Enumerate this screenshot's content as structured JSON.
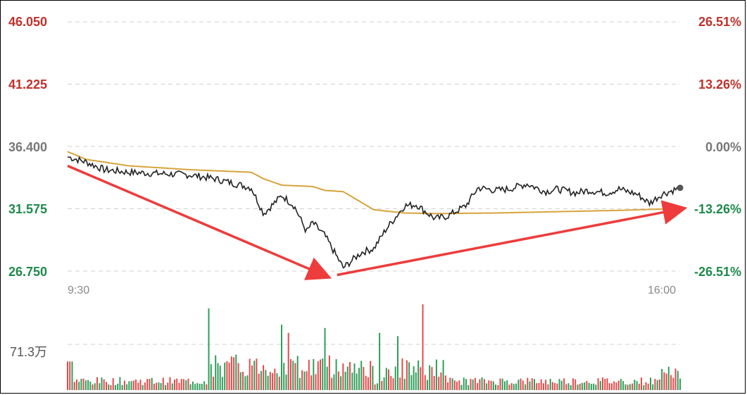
{
  "chart_data": {
    "type": "line",
    "price_axis": {
      "ticks": [
        "46.050",
        "41.225",
        "36.400",
        "31.575",
        "26.750"
      ],
      "values": [
        46.05,
        41.225,
        36.4,
        31.575,
        26.75
      ],
      "ylim": [
        26.75,
        46.05
      ],
      "colors": [
        "#c0312b",
        "#c0312b",
        "#777777",
        "#1f8a4c",
        "#1f8a4c"
      ]
    },
    "pct_axis": {
      "ticks": [
        "26.51%",
        "13.26%",
        "0.00%",
        "-13.26%",
        "-26.51%"
      ],
      "colors": [
        "#c0312b",
        "#c0312b",
        "#777777",
        "#1f8a4c",
        "#1f8a4c"
      ]
    },
    "x_ticks": [
      "9:30",
      "16:00"
    ],
    "volume_axis": {
      "tick": "71.3万"
    },
    "series": [
      {
        "color": "#222222",
        "t": [
          0,
          0.03,
          0.06,
          0.1,
          0.15,
          0.2,
          0.24,
          0.3,
          0.32,
          0.35,
          0.37,
          0.39,
          0.4,
          0.42,
          0.45,
          0.48,
          0.5,
          0.52,
          0.55,
          0.57,
          0.58,
          0.6,
          0.62,
          0.65,
          0.67,
          0.7,
          0.72,
          0.75,
          0.78,
          0.8,
          0.83,
          0.85,
          0.88,
          0.9,
          0.93,
          0.95,
          0.97,
          1.0
        ],
        "price": [
          35.6,
          35.2,
          34.6,
          34.4,
          34.3,
          34.2,
          33.9,
          33.2,
          31.2,
          32.6,
          31.8,
          29.8,
          30.5,
          29.5,
          27.0,
          28.2,
          28.5,
          30.0,
          31.8,
          31.9,
          31.5,
          30.8,
          31.0,
          31.8,
          33.2,
          33.0,
          33.1,
          33.5,
          32.9,
          33.1,
          32.8,
          33.0,
          32.8,
          33.1,
          32.7,
          32.0,
          32.7,
          33.2
        ]
      },
      {
        "color": "#d7a33b",
        "t": [
          0,
          0.03,
          0.1,
          0.2,
          0.3,
          0.32,
          0.35,
          0.4,
          0.42,
          0.45,
          0.5,
          0.55,
          0.6,
          0.7,
          0.8,
          0.9,
          1.0
        ],
        "price": [
          36.0,
          35.4,
          34.9,
          34.6,
          34.4,
          33.9,
          33.4,
          33.3,
          33.0,
          32.9,
          31.5,
          31.25,
          31.2,
          31.25,
          31.35,
          31.45,
          31.6
        ]
      }
    ],
    "arrows": [
      {
        "from": {
          "t": 0.0,
          "price": 34.9
        },
        "to": {
          "t": 0.42,
          "price": 26.4
        }
      },
      {
        "from": {
          "t": 0.44,
          "price": 26.45
        },
        "to": {
          "t": 1.0,
          "price": 31.55
        }
      }
    ],
    "volume": {
      "max": 100,
      "ref_value": 56,
      "spikes": [
        {
          "t": 0.23,
          "v": 100
        },
        {
          "t": 0.58,
          "v": 105
        },
        {
          "t": 0.35,
          "v": 80
        },
        {
          "t": 0.42,
          "v": 76
        },
        {
          "t": 0.36,
          "v": 70
        },
        {
          "t": 0.51,
          "v": 70
        },
        {
          "t": 0.54,
          "v": 66
        }
      ]
    }
  }
}
